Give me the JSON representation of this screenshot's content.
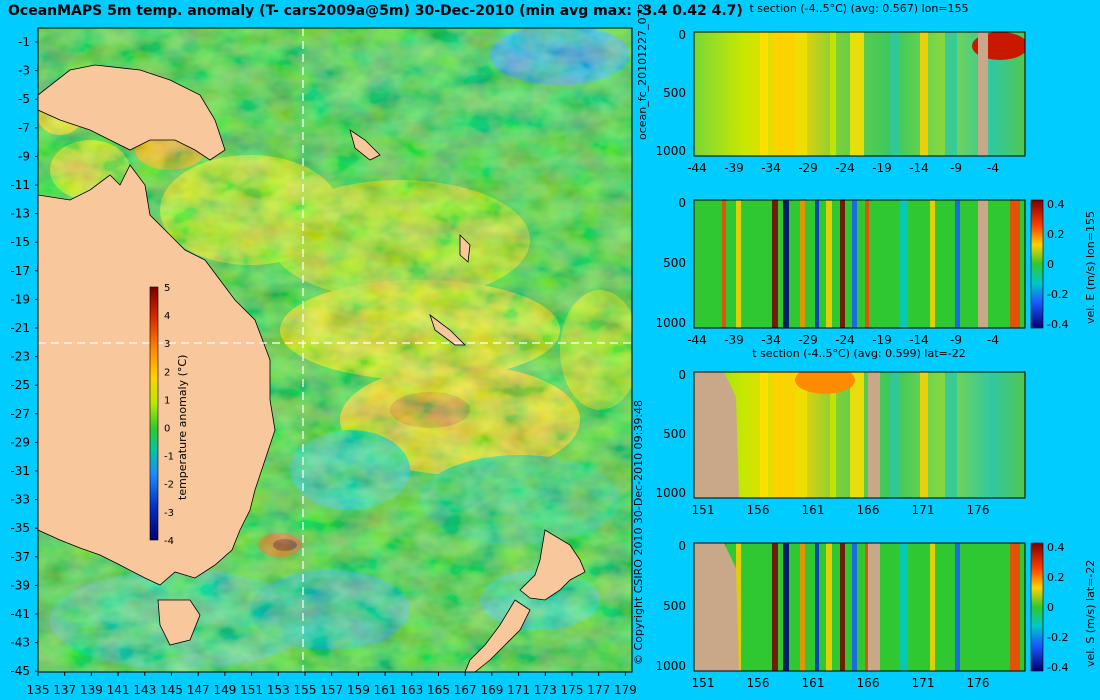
{
  "header": {
    "title": "OceanMAPS 5m temp. anomaly (T- cars2009a@5m) 30-Dec-2010 (min avg max: -3.4 0.42 4.7)"
  },
  "map": {
    "lat_labels": [
      "-1",
      "-3",
      "-5",
      "-7",
      "-9",
      "-11",
      "-13",
      "-15",
      "-17",
      "-19",
      "-21",
      "-23",
      "-25",
      "-27",
      "-29",
      "-31",
      "-33",
      "-35",
      "-37",
      "-39",
      "-41",
      "-43",
      "-45"
    ],
    "lon_labels": [
      "135",
      "137",
      "139",
      "141",
      "143",
      "145",
      "147",
      "149",
      "151",
      "153",
      "155",
      "157",
      "159",
      "161",
      "163",
      "165",
      "167",
      "169",
      "171",
      "173",
      "175",
      "177",
      "179"
    ],
    "colorbar": {
      "label": "temperature anomaly (°C)",
      "ticks": [
        "5",
        "4",
        "3",
        "2",
        "1",
        "0",
        "-1",
        "-2",
        "-3",
        "-4"
      ],
      "colors": [
        "#7a0000",
        "#d42a00",
        "#ff8c00",
        "#ffd200",
        "#b8e800",
        "#30c830",
        "#00c8a0",
        "#1a8cff",
        "#0030c8",
        "#000070"
      ]
    },
    "crosshair": {
      "lon": "155",
      "lat": "-22"
    }
  },
  "side_labels": {
    "run_id": "ocean_fc_20101227_072",
    "copyright": "© Copyright CSIRO 2010   30-Dec-2010 09:39:48"
  },
  "sections": [
    {
      "title": "t section (-4..5°C) (avg: 0.567) lon=155",
      "y_ticks": [
        "0",
        "500",
        "1000"
      ],
      "x_ticks": [
        "-44",
        "-39",
        "-34",
        "-29",
        "-24",
        "-19",
        "-14",
        "-9",
        "-4"
      ],
      "colorbar": null
    },
    {
      "title": "",
      "y_ticks": [
        "0",
        "500",
        "1000"
      ],
      "x_ticks": [
        "-44",
        "-39",
        "-34",
        "-29",
        "-24",
        "-19",
        "-14",
        "-9",
        "-4"
      ],
      "colorbar": {
        "label": "vel. E (m/s) lon=155",
        "ticks": [
          "0.4",
          "0.2",
          "0",
          "-0.2",
          "-0.4"
        ]
      }
    },
    {
      "title": "t section (-4..5°C) (avg: 0.599) lat=-22",
      "y_ticks": [
        "0",
        "500",
        "1000"
      ],
      "x_ticks": [
        "151",
        "156",
        "161",
        "166",
        "171",
        "176"
      ],
      "colorbar": null
    },
    {
      "title": "",
      "y_ticks": [
        "0",
        "500",
        "1000"
      ],
      "x_ticks": [
        "151",
        "156",
        "161",
        "166",
        "171",
        "176"
      ],
      "colorbar": {
        "label": "vel. S (m/s) lat=-22",
        "ticks": [
          "0.4",
          "0.2",
          "0",
          "-0.2",
          "-0.4"
        ]
      }
    }
  ],
  "colors": {
    "background": "#00ccff",
    "land": "#f8c89c",
    "section_land": "#c8a888",
    "ocean_base": "#30c830"
  }
}
